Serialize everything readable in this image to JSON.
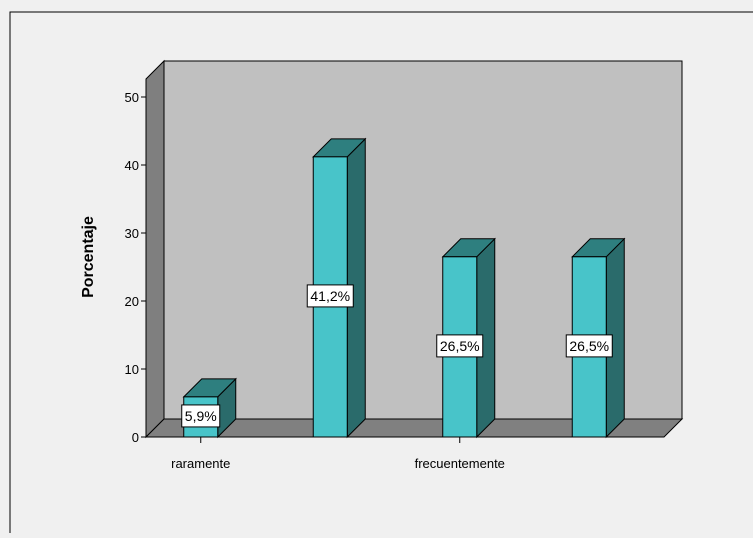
{
  "chart_data": {
    "type": "bar",
    "title": "",
    "xlabel": "",
    "ylabel": "Porcentaje",
    "ylim": [
      0,
      50
    ],
    "yticks": [
      0,
      10,
      20,
      30,
      40,
      50
    ],
    "categories": [
      "raramente",
      "",
      "frecuentemente",
      ""
    ],
    "values": [
      5.9,
      41.2,
      26.5,
      26.5
    ],
    "data_labels": [
      "5,9%",
      "41,2%",
      "26,5%",
      "26,5%"
    ],
    "style": "3d-bar",
    "grid": false,
    "colors": {
      "bar_front": "#48c4c9",
      "bar_top": "#2e7f7f",
      "bar_side": "#2a6b6b",
      "back_wall": "#c0c0c0",
      "side_wall": "#7f7f7f",
      "floor": "#808080",
      "page_background": "#f0f0f0"
    }
  }
}
